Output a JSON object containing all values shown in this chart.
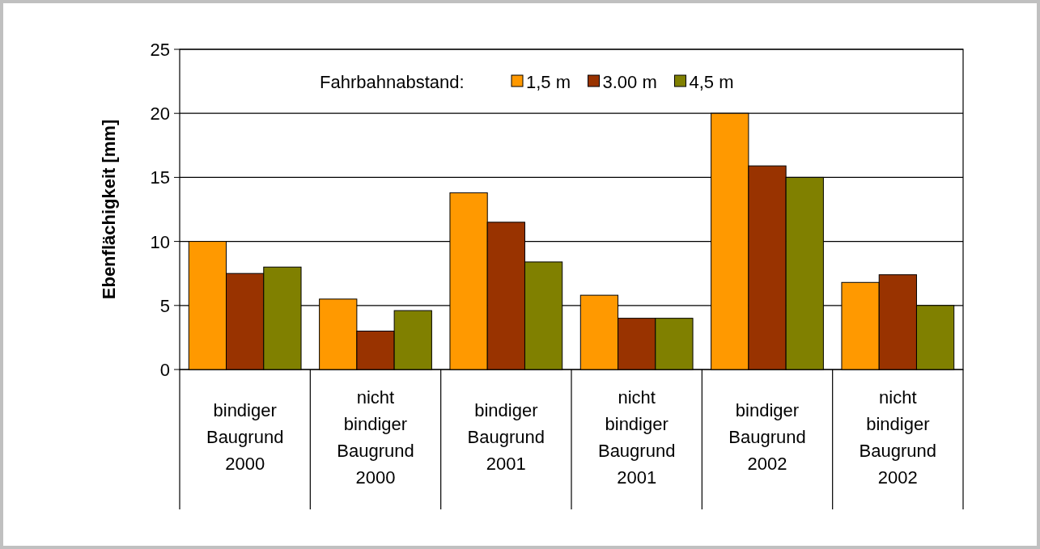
{
  "chart_data": {
    "type": "bar",
    "ylabel": "Ebenflächigkeit [mm]",
    "legend_title": "Fahrbahnabstand:",
    "legend": "top",
    "grid": "y",
    "categories": [
      "bindiger\nBaugrund\n2000",
      "nicht\nbindiger\nBaugrund\n2000",
      "bindiger\nBaugrund\n2001",
      "nicht\nbindiger\nBaugrund\n2001",
      "bindiger\nBaugrund\n2002",
      "nicht\nbindiger\nBaugrund\n2002"
    ],
    "series": [
      {
        "name": "1,5 m",
        "color": "#ff9900",
        "values": [
          10,
          5.5,
          13.8,
          5.8,
          20,
          6.8
        ]
      },
      {
        "name": "3.00 m",
        "color": "#993300",
        "values": [
          7.5,
          3,
          11.5,
          4,
          15.9,
          7.4
        ]
      },
      {
        "name": "4,5 m",
        "color": "#808000",
        "values": [
          8,
          4.6,
          8.4,
          4,
          15,
          5
        ]
      }
    ],
    "ylim": [
      0,
      25
    ],
    "yticks": [
      0,
      5,
      10,
      15,
      20,
      25
    ]
  }
}
